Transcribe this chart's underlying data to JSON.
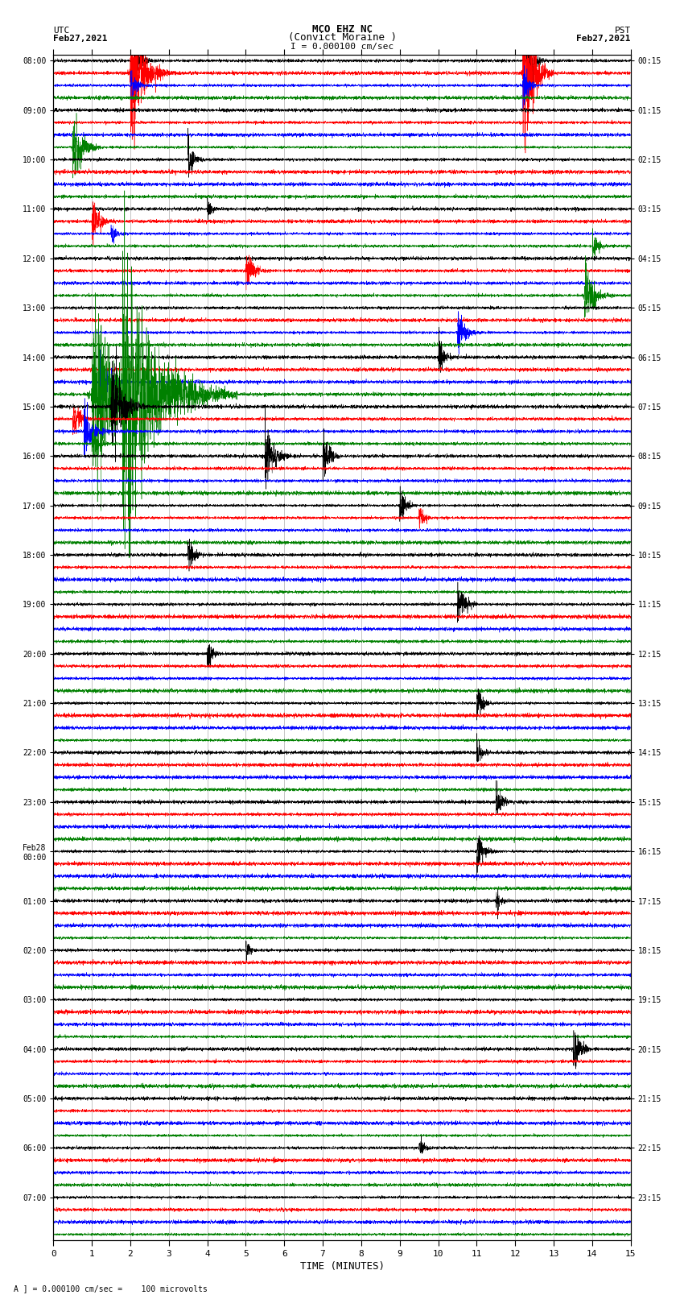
{
  "title_line1": "MCO EHZ NC",
  "title_line2": "(Convict Moraine )",
  "scale_label": "I = 0.000100 cm/sec",
  "bottom_label": "A ] = 0.000100 cm/sec =    100 microvolts",
  "xlabel": "TIME (MINUTES)",
  "left_timezone": "UTC",
  "left_date": "Feb27,2021",
  "right_timezone": "PST",
  "right_date": "Feb27,2021",
  "left_times": [
    "08:00",
    "09:00",
    "10:00",
    "11:00",
    "12:00",
    "13:00",
    "14:00",
    "15:00",
    "16:00",
    "17:00",
    "18:00",
    "19:00",
    "20:00",
    "21:00",
    "22:00",
    "23:00",
    "Feb28\n00:00",
    "01:00",
    "02:00",
    "03:00",
    "04:00",
    "05:00",
    "06:00",
    "07:00"
  ],
  "right_times": [
    "00:15",
    "01:15",
    "02:15",
    "03:15",
    "04:15",
    "05:15",
    "06:15",
    "07:15",
    "08:15",
    "09:15",
    "10:15",
    "11:15",
    "12:15",
    "13:15",
    "14:15",
    "15:15",
    "16:15",
    "17:15",
    "18:15",
    "19:15",
    "20:15",
    "21:15",
    "22:15",
    "23:15"
  ],
  "n_rows": 96,
  "x_min": 0,
  "x_max": 15,
  "colors": [
    "black",
    "red",
    "blue",
    "green"
  ],
  "background_color": "white",
  "seed": 42
}
